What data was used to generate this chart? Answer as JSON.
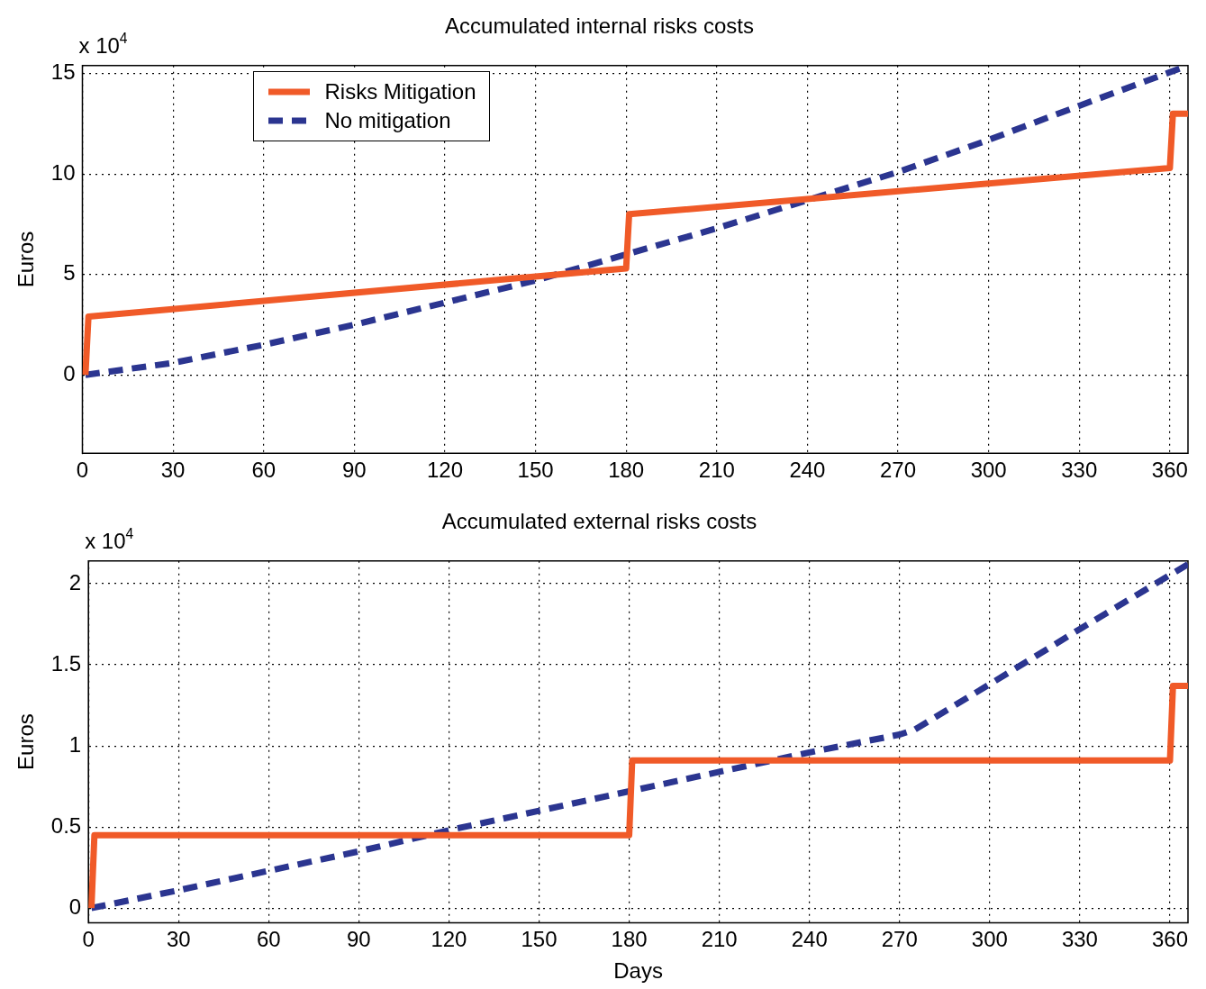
{
  "chart_data": [
    {
      "type": "line",
      "title": "Accumulated internal risks costs",
      "ylabel": "Euros",
      "annotations": [
        "x 10$^{4}$"
      ],
      "xlim": [
        0,
        366
      ],
      "xticks": [
        0,
        30,
        60,
        90,
        120,
        150,
        180,
        210,
        240,
        270,
        300,
        330,
        360
      ],
      "ylim": [
        -3.9,
        15.4
      ],
      "yticks": [
        0,
        5,
        10,
        15
      ],
      "grid": true,
      "legend": "top left",
      "marker": "none",
      "series": [
        {
          "name": "Risks Mitigation",
          "color": "#f05a28",
          "line_style": "solid",
          "x": [
            1,
            2,
            180,
            181,
            360,
            361,
            366
          ],
          "values": [
            0,
            2.9,
            5.3,
            8.0,
            10.3,
            13,
            13
          ]
        },
        {
          "name": "No mitigation",
          "color": "#2b3590",
          "line_style": "dashed",
          "x": [
            1,
            30,
            60,
            90,
            120,
            150,
            180,
            210,
            240,
            270,
            300,
            330,
            366
          ],
          "values": [
            0,
            0.6,
            1.5,
            2.5,
            3.6,
            4.7,
            6.0,
            7.3,
            8.7,
            10.1,
            11.7,
            13.4,
            15.4
          ]
        }
      ]
    },
    {
      "type": "line",
      "title": "Accumulated external risks costs",
      "xlabel": "Days",
      "ylabel": "Euros",
      "annotations": [
        "x 10$^{4}$"
      ],
      "xlim": [
        0,
        366
      ],
      "xticks": [
        0,
        30,
        60,
        90,
        120,
        150,
        180,
        210,
        240,
        270,
        300,
        330,
        360
      ],
      "ylim": [
        -0.09,
        2.14
      ],
      "yticks": [
        0,
        0.5,
        1,
        1.5,
        2
      ],
      "grid": true,
      "legend": false,
      "marker": "none",
      "series": [
        {
          "color": "#f05a28",
          "line_style": "solid",
          "x": [
            1,
            2,
            180,
            181,
            360,
            361,
            366
          ],
          "values": [
            0,
            0.45,
            0.45,
            0.91,
            0.91,
            1.37,
            1.37
          ]
        },
        {
          "color": "#2b3590",
          "line_style": "dashed",
          "x": [
            1,
            30,
            60,
            90,
            120,
            150,
            180,
            210,
            240,
            270,
            275,
            300,
            330,
            366
          ],
          "values": [
            0,
            0.11,
            0.23,
            0.35,
            0.48,
            0.6,
            0.72,
            0.84,
            0.96,
            1.07,
            1.1,
            1.38,
            1.72,
            2.12
          ]
        }
      ]
    }
  ]
}
